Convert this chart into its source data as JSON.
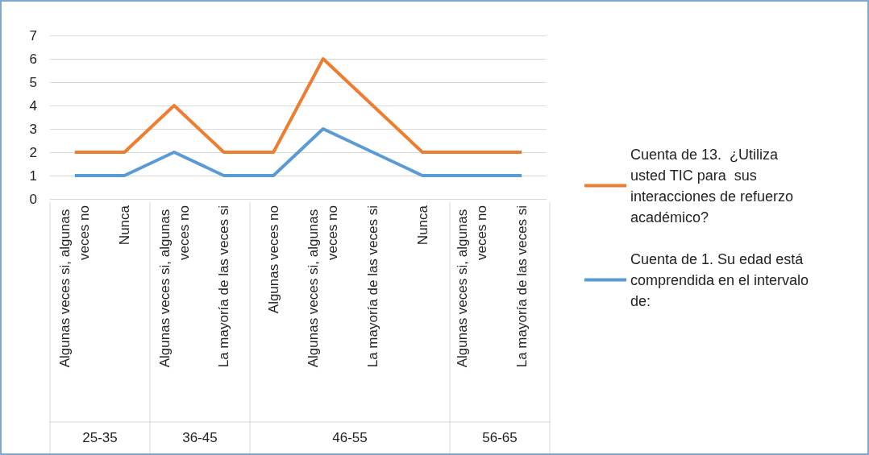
{
  "chart_data": {
    "type": "line",
    "categories": [
      "Algunas veces si, algunas veces no",
      "Nunca",
      "Algunas veces si, algunas veces no",
      "La mayoría de las veces si",
      "Algunas veces no",
      "Algunas veces si, algunas veces no",
      "La mayoría de las veces si",
      "Nunca",
      "Algunas veces si, algunas veces no",
      "La mayoría de las veces si"
    ],
    "series": [
      {
        "name": "Cuenta de 13.  ¿Utiliza  usted TIC para  sus interacciones de refuerzo académico?",
        "color": "#ed7d31",
        "values": [
          2,
          2,
          4,
          2,
          2,
          6,
          4,
          2,
          2,
          2
        ]
      },
      {
        "name": "Cuenta de 1. Su edad está comprendida en el intervalo de:",
        "color": "#5b9bd5",
        "values": [
          1,
          1,
          2,
          1,
          1,
          3,
          2,
          1,
          1,
          1
        ]
      }
    ],
    "annotations": [
      "25-35",
      "36-45",
      "46-55",
      "56-65"
    ],
    "ylim": [
      0,
      7
    ],
    "yticks": [
      0,
      1,
      2,
      3,
      4,
      5,
      6,
      7
    ],
    "grid": "y",
    "legend": "right",
    "marker": "none",
    "line_style": "solid"
  }
}
